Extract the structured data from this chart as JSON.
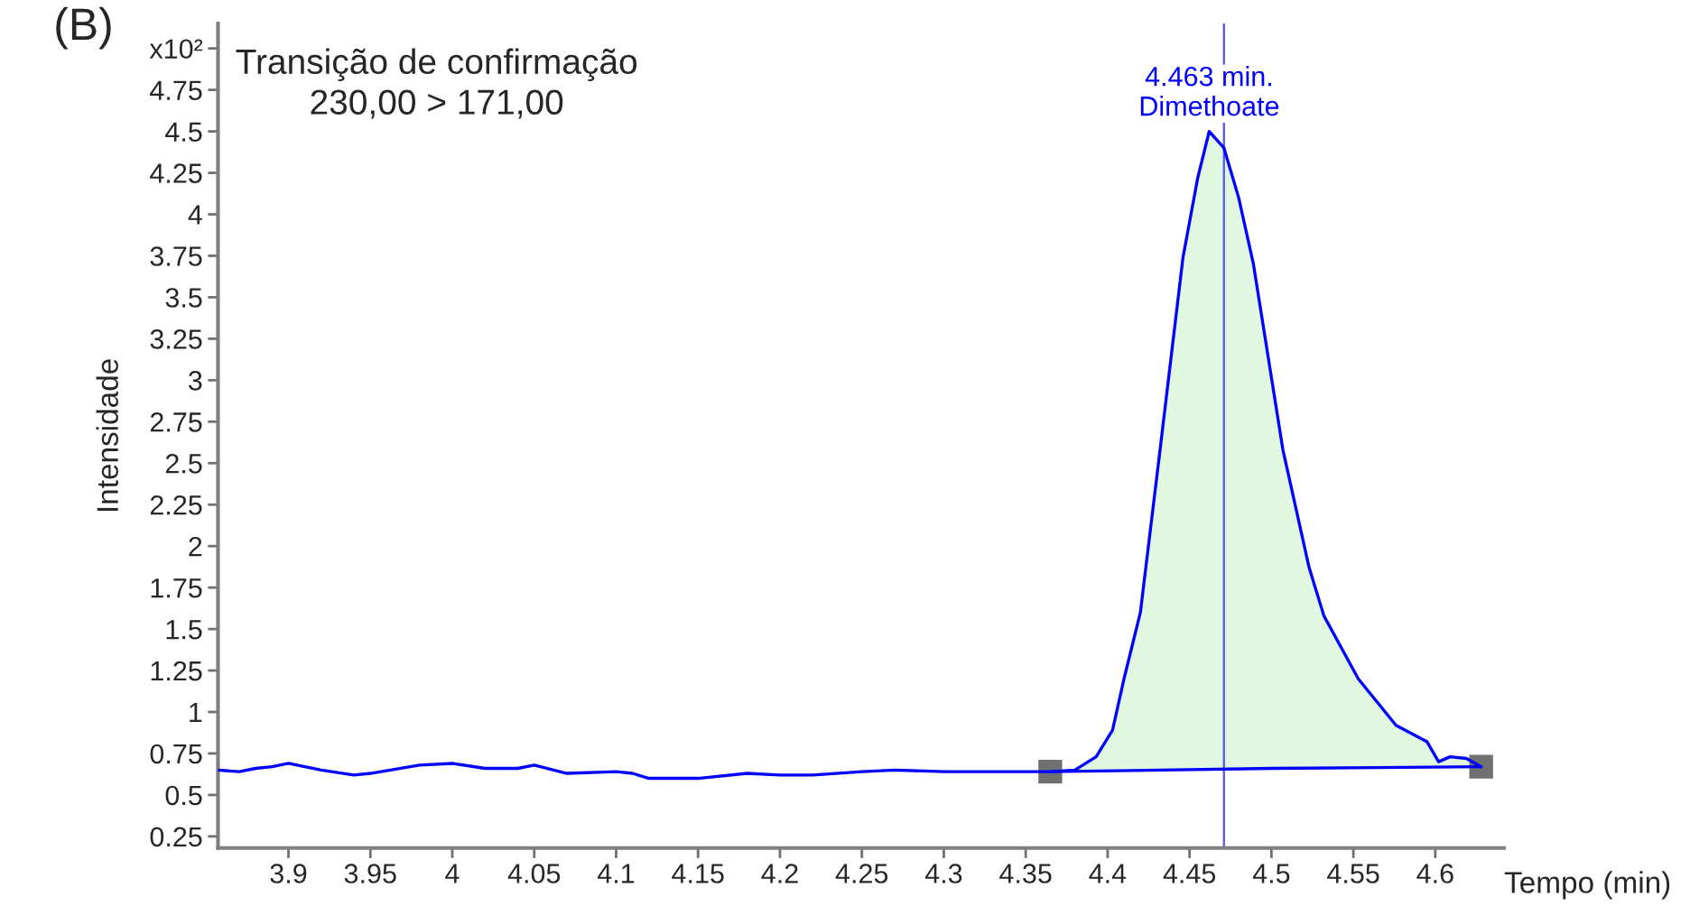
{
  "chart_data": {
    "type": "line",
    "xlabel": "Tempo (min)",
    "ylabel": "Intensidade",
    "annotations": [
      "(B)",
      "Transição de confirmação\n230,00 > 171,00",
      {
        "text": "4.463 min.\nDimethoate",
        "x": 4.462,
        "y": 4.5
      }
    ],
    "xlim": [
      3.857,
      4.642
    ],
    "ylim": [
      0.18,
      5.15
    ],
    "xticks": [
      3.9,
      3.95,
      4,
      4.05,
      4.1,
      4.15,
      4.2,
      4.25,
      4.3,
      4.35,
      4.4,
      4.45,
      4.5,
      4.55,
      4.6
    ],
    "yticks": [
      0.25,
      0.5,
      0.75,
      1,
      1.25,
      1.5,
      1.75,
      2,
      2.25,
      2.5,
      2.75,
      3,
      3.25,
      3.5,
      3.75,
      4,
      4.25,
      4.5,
      4.75,
      {
        "value": 5,
        "label": "x10²"
      }
    ],
    "grid": false,
    "legend": false,
    "ref_lines": [
      {
        "axis": "x",
        "value": 4.471,
        "color": "#5050ff"
      }
    ],
    "series": [
      {
        "type": "area",
        "color": "#e0f8e0",
        "x": [
          4.365,
          4.38,
          4.393,
          4.403,
          4.41,
          4.42,
          4.432,
          4.446,
          4.455,
          4.462,
          4.471,
          4.48,
          4.489,
          4.507,
          4.523,
          4.532,
          4.553,
          4.576,
          4.595,
          4.602,
          4.609,
          4.619,
          4.628
        ],
        "values": [
          0.64,
          0.65,
          0.73,
          0.89,
          1.2,
          1.6,
          2.58,
          3.74,
          4.22,
          4.5,
          4.4,
          4.1,
          3.7,
          2.58,
          1.87,
          1.58,
          1.2,
          0.92,
          0.82,
          0.7,
          0.73,
          0.72,
          0.67
        ]
      },
      {
        "type": "line",
        "color": "#0000ff",
        "x": [
          3.857,
          3.87,
          3.88,
          3.89,
          3.9,
          3.92,
          3.94,
          3.95,
          3.98,
          4.0,
          4.02,
          4.04,
          4.05,
          4.07,
          4.1,
          4.11,
          4.12,
          4.15,
          4.18,
          4.2,
          4.22,
          4.25,
          4.27,
          4.3,
          4.32,
          4.35,
          4.365,
          4.38,
          4.393,
          4.403,
          4.41,
          4.42,
          4.432,
          4.446,
          4.455,
          4.462,
          4.471,
          4.48,
          4.489,
          4.507,
          4.523,
          4.532,
          4.553,
          4.576,
          4.595,
          4.602,
          4.609,
          4.619,
          4.628
        ],
        "values": [
          0.65,
          0.64,
          0.66,
          0.67,
          0.69,
          0.65,
          0.62,
          0.63,
          0.68,
          0.69,
          0.66,
          0.66,
          0.68,
          0.63,
          0.64,
          0.63,
          0.6,
          0.6,
          0.63,
          0.62,
          0.62,
          0.64,
          0.65,
          0.64,
          0.64,
          0.64,
          0.64,
          0.65,
          0.73,
          0.89,
          1.2,
          1.6,
          2.58,
          3.74,
          4.22,
          4.5,
          4.4,
          4.1,
          3.7,
          2.58,
          1.87,
          1.58,
          1.2,
          0.92,
          0.82,
          0.7,
          0.73,
          0.72,
          0.67
        ]
      },
      {
        "type": "line",
        "color": "#0000ff",
        "x": [
          4.365,
          4.5,
          4.628
        ],
        "values": [
          0.64,
          0.66,
          0.67
        ]
      },
      {
        "type": "scatter",
        "color": "#707070",
        "marker": "square",
        "x": [
          4.365,
          4.628
        ],
        "values": [
          0.64,
          0.67
        ]
      }
    ]
  }
}
